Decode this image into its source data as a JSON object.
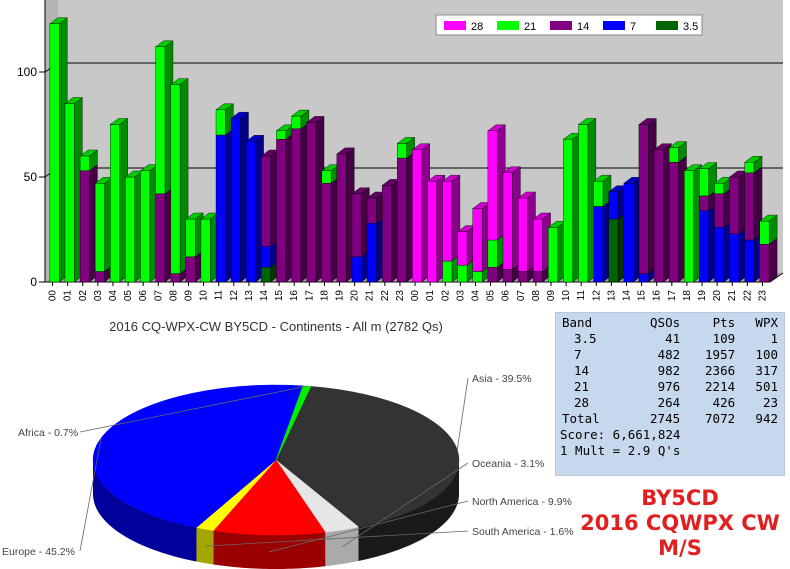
{
  "chart_data": [
    {
      "type": "bar",
      "stacked": true,
      "categories": [
        "00",
        "01",
        "02",
        "03",
        "04",
        "05",
        "06",
        "07",
        "08",
        "09",
        "10",
        "11",
        "12",
        "13",
        "14",
        "15",
        "16",
        "17",
        "18",
        "19",
        "20",
        "21",
        "22",
        "23",
        "00",
        "01",
        "02",
        "03",
        "04",
        "05",
        "06",
        "07",
        "08",
        "09",
        "10",
        "11",
        "12",
        "13",
        "14",
        "15",
        "16",
        "17",
        "18",
        "19",
        "20",
        "21",
        "22",
        "23"
      ],
      "series": [
        {
          "name": "3.5",
          "color": "#006400",
          "values": [
            0,
            0,
            0,
            0,
            0,
            0,
            0,
            0,
            0,
            0,
            0,
            0,
            0,
            0,
            7,
            0,
            0,
            0,
            0,
            0,
            0,
            0,
            0,
            0,
            0,
            0,
            0,
            0,
            0,
            0,
            0,
            0,
            0,
            0,
            0,
            0,
            0,
            30,
            0,
            0,
            0,
            0,
            0,
            0,
            0,
            0,
            0,
            0
          ]
        },
        {
          "name": "7",
          "color": "#0000ff",
          "values": [
            0,
            0,
            0,
            0,
            0,
            0,
            0,
            0,
            0,
            0,
            0,
            70,
            78,
            67,
            10,
            0,
            0,
            0,
            0,
            0,
            12,
            28,
            0,
            0,
            0,
            0,
            0,
            0,
            0,
            0,
            0,
            0,
            0,
            0,
            0,
            0,
            36,
            13,
            47,
            4,
            0,
            0,
            0,
            34,
            26,
            23,
            20,
            0
          ]
        },
        {
          "name": "14",
          "color": "#800080",
          "values": [
            0,
            0,
            53,
            5,
            0,
            0,
            0,
            42,
            4,
            12,
            0,
            0,
            0,
            0,
            43,
            68,
            73,
            76,
            47,
            61,
            30,
            12,
            46,
            59,
            0,
            0,
            0,
            0,
            0,
            7,
            6,
            5,
            5,
            0,
            0,
            0,
            0,
            0,
            0,
            71,
            63,
            57,
            0,
            7,
            16,
            27,
            32,
            18
          ]
        },
        {
          "name": "21",
          "color": "#00ff00",
          "values": [
            123,
            85,
            7,
            42,
            75,
            50,
            53,
            70,
            90,
            18,
            30,
            12,
            0,
            0,
            0,
            4,
            6,
            0,
            6,
            0,
            0,
            0,
            0,
            7,
            0,
            0,
            10,
            8,
            5,
            13,
            0,
            0,
            0,
            26,
            68,
            75,
            12,
            0,
            0,
            0,
            0,
            7,
            53,
            13,
            5,
            0,
            5,
            11
          ]
        },
        {
          "name": "28",
          "color": "#ff00ff",
          "values": [
            0,
            0,
            0,
            0,
            0,
            0,
            0,
            0,
            0,
            0,
            0,
            0,
            0,
            0,
            0,
            0,
            0,
            0,
            0,
            0,
            0,
            0,
            0,
            0,
            63,
            48,
            38,
            16,
            30,
            52,
            46,
            35,
            25,
            0,
            0,
            0,
            0,
            0,
            0,
            0,
            0,
            0,
            0,
            0,
            0,
            0,
            0,
            0
          ]
        }
      ],
      "legend": [
        "28",
        "21",
        "14",
        "7",
        "3.5"
      ],
      "yticks": [
        0,
        50,
        100
      ],
      "ylim": [
        0,
        130
      ]
    },
    {
      "type": "pie",
      "title": "2016 CQ-WPX-CW BY5CD - Continents - All m (2782 Qs)",
      "slices": [
        {
          "label": "Asia - 39.5%",
          "value": 39.5,
          "color": "#333333",
          "side": "#1a1a1a"
        },
        {
          "label": "Oceania - 3.1%",
          "value": 3.1,
          "color": "#e6e6e6",
          "side": "#aaaaaa"
        },
        {
          "label": "North America - 9.9%",
          "value": 9.9,
          "color": "#ff0000",
          "side": "#9a0000"
        },
        {
          "label": "South America - 1.6%",
          "value": 1.6,
          "color": "#ffff00",
          "side": "#a6a600"
        },
        {
          "label": "Europe - 45.2%",
          "value": 45.2,
          "color": "#0000ff",
          "side": "#00009a"
        },
        {
          "label": "Africa - 0.7%",
          "value": 0.7,
          "color": "#00ee00",
          "side": "#008800"
        }
      ]
    }
  ],
  "stats": {
    "headers": [
      "Band",
      "QSOs",
      "Pts",
      "WPX"
    ],
    "rows": [
      [
        "3.5",
        "41",
        "109",
        "1"
      ],
      [
        "7",
        "482",
        "1957",
        "100"
      ],
      [
        "14",
        "982",
        "2366",
        "317"
      ],
      [
        "21",
        "976",
        "2214",
        "501"
      ],
      [
        "28",
        "264",
        "426",
        "23"
      ],
      [
        "Total",
        "2745",
        "7072",
        "942"
      ]
    ],
    "score": "Score: 6,661,824",
    "mult": "1 Mult = 2.9 Q's"
  },
  "badge": {
    "call": "BY5CD",
    "contest": "2016 CQWPX CW",
    "category": "M/S"
  }
}
